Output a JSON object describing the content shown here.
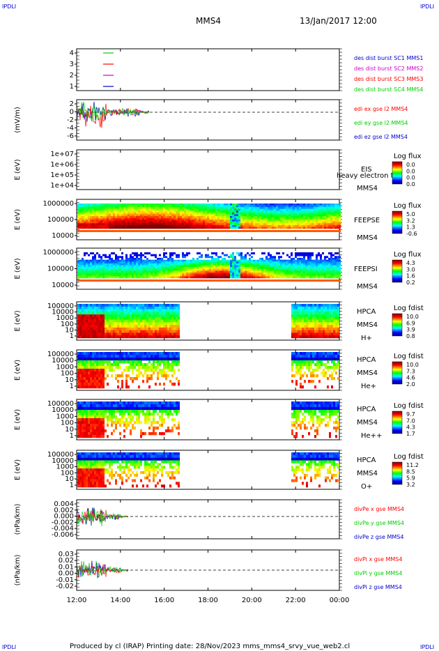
{
  "corner": {
    "tl": "IPDLI",
    "tr": "IPDLI",
    "bl": "IPDLI",
    "br": "IPDLI"
  },
  "header": {
    "title": "MMS4",
    "date": "13/Jan/2017 12:00"
  },
  "footer": {
    "text": "Produced by cl (IRAP)   Printing date: 28/Nov/2023   mms_mms4_srvy_vue_web2.cl"
  },
  "x_ticks": [
    "12:00",
    "14:00",
    "16:00",
    "18:00",
    "20:00",
    "22:00",
    "00:00"
  ],
  "colors": {
    "red": "#ff0000",
    "green": "#00cc00",
    "blue": "#0000cc",
    "magenta": "#cc00cc"
  },
  "chart_data": [
    {
      "type": "line",
      "id": "burst",
      "y_ticks": [
        "4",
        "3",
        "2",
        "1"
      ],
      "legend": [
        {
          "text": "des dist burst SC1 MMS1",
          "color": "#0000cc"
        },
        {
          "text": "des dist burst SC2 MMS2",
          "color": "#cc00cc"
        },
        {
          "text": "des dist burst SC3 MMS3",
          "color": "#ff0000"
        },
        {
          "text": "des dist burst SC4 MMS4",
          "color": "#00cc00"
        }
      ]
    },
    {
      "type": "line",
      "id": "edi",
      "ylabel": "(mV/m)",
      "y_ticks": [
        "2",
        "0",
        "-2",
        "-4",
        "-6"
      ],
      "legend": [
        {
          "text": "edi ex gse l2 MMS4",
          "color": "#ff0000"
        },
        {
          "text": "edi ey gse l2 MMS4",
          "color": "#00cc00"
        },
        {
          "text": "edi ez gse l2 MMS4",
          "color": "#0000cc"
        }
      ]
    },
    {
      "type": "heatmap",
      "id": "eis",
      "ylabel": "E (eV)",
      "y_ticks": [
        "1e+07",
        "1e+06",
        "1e+05",
        "1e+04"
      ],
      "labels": [
        "EIS",
        "heavy electron tof",
        "MMS4"
      ],
      "cbar_title": "Log flux",
      "cbar_ticks": [
        "0.0",
        "0.0",
        "0.0",
        "0.0"
      ]
    },
    {
      "type": "heatmap",
      "id": "feepse",
      "ylabel": "E (eV)",
      "y_ticks": [
        "1000000",
        "100000",
        "10000"
      ],
      "labels": [
        "FEEPSE",
        "MMS4"
      ],
      "cbar_title": "Log flux",
      "cbar_ticks": [
        "5.0",
        "3.2",
        "1.3",
        "-0.6"
      ]
    },
    {
      "type": "heatmap",
      "id": "feepsi",
      "ylabel": "E (eV)",
      "y_ticks": [
        "1000000",
        "100000",
        "10000"
      ],
      "labels": [
        "FEEPSI",
        "MMS4"
      ],
      "cbar_title": "Log flux",
      "cbar_ticks": [
        "4.3",
        "3.0",
        "1.6",
        "0.2"
      ]
    },
    {
      "type": "heatmap",
      "id": "hpca_h",
      "ylabel": "E (eV)",
      "y_ticks": [
        "100000",
        "10000",
        "1000",
        "100",
        "10",
        "1"
      ],
      "labels": [
        "HPCA",
        "MMS4",
        "H+"
      ],
      "cbar_title": "Log fdist",
      "cbar_ticks": [
        "10.0",
        "6.9",
        "3.9",
        "0.8"
      ]
    },
    {
      "type": "heatmap",
      "id": "hpca_he",
      "ylabel": "E (eV)",
      "y_ticks": [
        "100000",
        "10000",
        "1000",
        "100",
        "10",
        "1"
      ],
      "labels": [
        "HPCA",
        "MMS4",
        "He+"
      ],
      "cbar_title": "Log fdist",
      "cbar_ticks": [
        "10.0",
        "7.3",
        "4.6",
        "2.0"
      ]
    },
    {
      "type": "heatmap",
      "id": "hpca_he2",
      "ylabel": "E (eV)",
      "y_ticks": [
        "100000",
        "10000",
        "1000",
        "100",
        "10",
        "1"
      ],
      "labels": [
        "HPCA",
        "MMS4",
        "He++"
      ],
      "cbar_title": "Log fdist",
      "cbar_ticks": [
        "9.7",
        "7.0",
        "4.3",
        "1.7"
      ]
    },
    {
      "type": "heatmap",
      "id": "hpca_o",
      "ylabel": "E (eV)",
      "y_ticks": [
        "100000",
        "10000",
        "1000",
        "100",
        "10",
        "1"
      ],
      "labels": [
        "HPCA",
        "MMS4",
        "O+"
      ],
      "cbar_title": "Log fdist",
      "cbar_ticks": [
        "11.2",
        "8.5",
        "5.9",
        "3.2"
      ]
    },
    {
      "type": "line",
      "id": "divpe",
      "ylabel": "(nPa/km)",
      "y_ticks": [
        "0.004",
        "0.002",
        "0.000",
        "-0.002",
        "-0.004",
        "-0.006"
      ],
      "legend": [
        {
          "text": "divPe x gse MMS4",
          "color": "#ff0000"
        },
        {
          "text": "divPe y gse MMS4",
          "color": "#00cc00"
        },
        {
          "text": "divPe z gse MMS4",
          "color": "#0000cc"
        }
      ]
    },
    {
      "type": "line",
      "id": "divpi",
      "ylabel": "(nPa/km)",
      "y_ticks": [
        "0.03",
        "0.02",
        "0.01",
        "0.00",
        "-0.01",
        "-0.02"
      ],
      "legend": [
        {
          "text": "divPi x gse MMS4",
          "color": "#ff0000"
        },
        {
          "text": "divPi y gse MMS4",
          "color": "#00cc00"
        },
        {
          "text": "divPi z gse MMS4",
          "color": "#0000cc"
        }
      ]
    }
  ]
}
